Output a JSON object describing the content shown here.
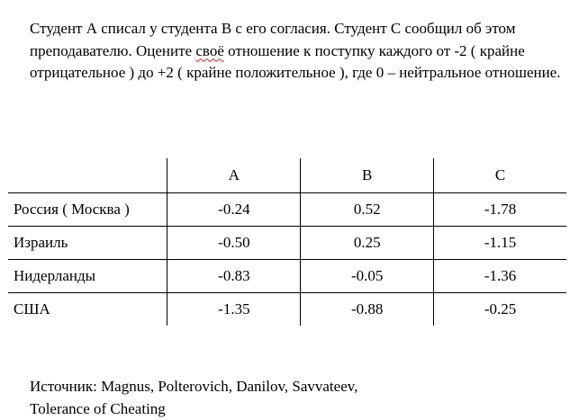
{
  "intro": {
    "part1": "Студент А списал у студента В с его согласия. Студент С сообщил об этом преподавателю. Оцените ",
    "flagged_word": "своё",
    "part2": " отношение к поступку каждого от -2 ( крайне отрицательное ) до +2 ( крайне положительное ), где 0 – нейтральное отношение."
  },
  "table": {
    "headers": [
      "",
      "A",
      "B",
      "C"
    ],
    "rows": [
      {
        "country": "Россия ( Москва )",
        "a": "-0.24",
        "b": "0.52",
        "c": "-1.78"
      },
      {
        "country": "Израиль",
        "a": "-0.50",
        "b": "0.25",
        "c": "-1.15"
      },
      {
        "country": "Нидерланды",
        "a": "-0.83",
        "b": "-0.05",
        "c": "-1.36"
      },
      {
        "country": "США",
        "a": "-1.35",
        "b": "-0.88",
        "c": "-0.25"
      }
    ]
  },
  "source": {
    "line1": "Источник: Magnus, Polterovich, Danilov, Savvateev,",
    "line2": "Tolerance of Cheating"
  },
  "colors": {
    "spellcheck_underline": "#d21d1d"
  }
}
